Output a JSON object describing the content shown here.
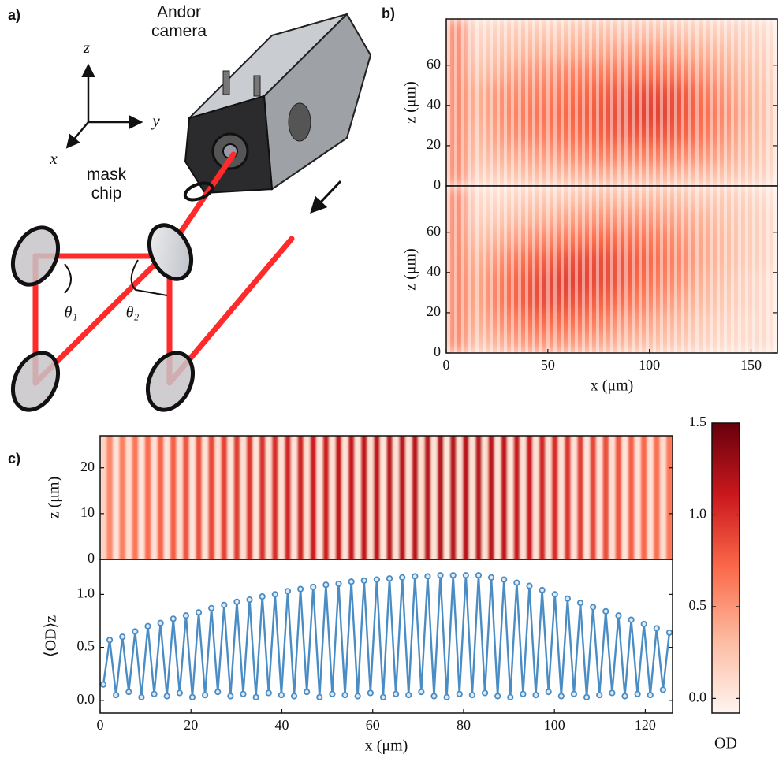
{
  "diagram": {
    "label": "a)",
    "camera": "Andor camera",
    "chip": "mask chip",
    "axes": [
      "z",
      "y",
      "x"
    ],
    "angles": [
      "θ₁",
      "θ₂"
    ]
  },
  "chart_data": [
    {
      "type": "heatmap",
      "label": "b)",
      "ylabel": "z (μm)",
      "xlim": [
        0,
        163
      ],
      "ylim": [
        0,
        83
      ],
      "yticks": [
        0,
        20,
        40,
        60
      ],
      "values": [
        [
          0.6,
          0.15,
          0.2,
          0.25,
          0.3,
          0.3,
          0.35,
          0.35,
          0.35,
          0.35,
          0.35,
          0.3,
          0.3,
          0.25,
          0.2,
          0.15
        ],
        [
          0.6,
          0.25,
          0.35,
          0.4,
          0.45,
          0.5,
          0.55,
          0.6,
          0.6,
          0.6,
          0.6,
          0.55,
          0.5,
          0.4,
          0.3,
          0.2
        ],
        [
          0.6,
          0.3,
          0.45,
          0.55,
          0.6,
          0.65,
          0.7,
          0.75,
          0.8,
          0.8,
          0.8,
          0.75,
          0.65,
          0.5,
          0.35,
          0.25
        ],
        [
          0.6,
          0.35,
          0.5,
          0.6,
          0.65,
          0.7,
          0.75,
          0.8,
          0.85,
          0.9,
          0.9,
          0.8,
          0.7,
          0.55,
          0.4,
          0.25
        ],
        [
          0.6,
          0.35,
          0.5,
          0.55,
          0.6,
          0.65,
          0.7,
          0.75,
          0.8,
          0.85,
          0.85,
          0.8,
          0.65,
          0.5,
          0.35,
          0.25
        ],
        [
          0.6,
          0.25,
          0.35,
          0.45,
          0.5,
          0.55,
          0.6,
          0.6,
          0.65,
          0.65,
          0.65,
          0.6,
          0.5,
          0.4,
          0.3,
          0.2
        ],
        [
          0.6,
          0.15,
          0.25,
          0.3,
          0.35,
          0.35,
          0.4,
          0.4,
          0.45,
          0.45,
          0.45,
          0.4,
          0.35,
          0.3,
          0.2,
          0.15
        ],
        [
          0.6,
          0.1,
          0.15,
          0.2,
          0.2,
          0.2,
          0.25,
          0.25,
          0.25,
          0.25,
          0.25,
          0.2,
          0.2,
          0.15,
          0.15,
          0.1
        ]
      ]
    },
    {
      "type": "heatmap",
      "ylabel": "z (μm)",
      "xlabel": "x (μm)",
      "xlim": [
        0,
        163
      ],
      "ylim": [
        0,
        83
      ],
      "xticks": [
        0,
        50,
        100,
        150
      ],
      "yticks": [
        0,
        20,
        40,
        60
      ],
      "values": [
        [
          0.6,
          0.25,
          0.35,
          0.45,
          0.5,
          0.5,
          0.45,
          0.4,
          0.35,
          0.3,
          0.25,
          0.2,
          0.15,
          0.1,
          0.1,
          0.1
        ],
        [
          0.6,
          0.35,
          0.5,
          0.6,
          0.7,
          0.7,
          0.65,
          0.6,
          0.5,
          0.45,
          0.35,
          0.3,
          0.2,
          0.15,
          0.1,
          0.1
        ],
        [
          0.6,
          0.4,
          0.6,
          0.75,
          0.85,
          0.85,
          0.8,
          0.75,
          0.7,
          0.6,
          0.5,
          0.4,
          0.3,
          0.2,
          0.15,
          0.1
        ],
        [
          0.6,
          0.4,
          0.6,
          0.75,
          0.85,
          0.9,
          0.9,
          0.85,
          0.8,
          0.7,
          0.6,
          0.5,
          0.35,
          0.25,
          0.15,
          0.1
        ],
        [
          0.6,
          0.35,
          0.5,
          0.65,
          0.75,
          0.8,
          0.85,
          0.85,
          0.8,
          0.75,
          0.65,
          0.55,
          0.4,
          0.3,
          0.2,
          0.15
        ],
        [
          0.6,
          0.25,
          0.35,
          0.45,
          0.55,
          0.6,
          0.65,
          0.7,
          0.7,
          0.65,
          0.6,
          0.5,
          0.4,
          0.3,
          0.2,
          0.15
        ],
        [
          0.6,
          0.15,
          0.2,
          0.3,
          0.35,
          0.4,
          0.45,
          0.5,
          0.5,
          0.5,
          0.45,
          0.4,
          0.35,
          0.25,
          0.2,
          0.15
        ],
        [
          0.6,
          0.1,
          0.1,
          0.15,
          0.2,
          0.2,
          0.25,
          0.3,
          0.3,
          0.3,
          0.3,
          0.25,
          0.2,
          0.2,
          0.15,
          0.1
        ]
      ]
    },
    {
      "type": "heatmap",
      "label": "c)",
      "ylabel": "z (μm)",
      "xlim": [
        0,
        126
      ],
      "ylim": [
        0,
        27
      ],
      "yticks": [
        0,
        10,
        20
      ]
    },
    {
      "type": "line",
      "ylabel": "⟨OD⟩z",
      "xlabel": "x (μm)",
      "xlim": [
        0,
        126
      ],
      "ylim": [
        -0.12,
        1.33
      ],
      "xticks": [
        0,
        20,
        40,
        60,
        80,
        100,
        120
      ],
      "yticks": [
        {
          "value": 0,
          "label": "0.0"
        },
        0.5,
        {
          "value": 1,
          "label": "1.0"
        }
      ],
      "color": "#4a8cc4",
      "x": [
        0.7,
        2.1,
        3.5,
        4.9,
        6.3,
        7.7,
        9.1,
        10.5,
        11.9,
        13.3,
        14.7,
        16.1,
        17.5,
        18.9,
        20.3,
        21.7,
        23.1,
        24.5,
        25.9,
        27.3,
        28.7,
        30.1,
        31.5,
        32.9,
        34.3,
        35.7,
        37.1,
        38.5,
        39.9,
        41.3,
        42.7,
        44.1,
        45.5,
        46.9,
        48.3,
        49.7,
        51.1,
        52.5,
        53.9,
        55.3,
        56.7,
        58.1,
        59.5,
        60.9,
        62.3,
        63.7,
        65.1,
        66.5,
        67.9,
        69.3,
        70.7,
        72.1,
        73.5,
        74.9,
        76.3,
        77.7,
        79.1,
        80.5,
        81.9,
        83.3,
        84.7,
        86.1,
        87.5,
        88.9,
        90.3,
        91.7,
        93.1,
        94.5,
        95.9,
        97.3,
        98.7,
        100.1,
        101.5,
        102.9,
        104.3,
        105.7,
        107.1,
        108.5,
        109.9,
        111.3,
        112.7,
        114.1,
        115.5,
        116.9,
        118.3,
        119.7,
        121.1,
        122.5,
        123.9,
        125.3
      ],
      "values": [
        0.15,
        0.57,
        0.05,
        0.6,
        0.08,
        0.65,
        0.03,
        0.7,
        0.06,
        0.73,
        0.04,
        0.77,
        0.07,
        0.8,
        0.03,
        0.83,
        0.05,
        0.87,
        0.08,
        0.9,
        0.04,
        0.93,
        0.06,
        0.95,
        0.03,
        0.98,
        0.07,
        1.0,
        0.05,
        1.03,
        0.04,
        1.05,
        0.08,
        1.07,
        0.03,
        1.09,
        0.06,
        1.1,
        0.05,
        1.12,
        0.04,
        1.13,
        0.07,
        1.14,
        0.03,
        1.15,
        0.06,
        1.16,
        0.05,
        1.17,
        0.08,
        1.17,
        0.04,
        1.18,
        0.03,
        1.18,
        0.06,
        1.18,
        0.05,
        1.18,
        0.07,
        1.16,
        0.04,
        1.14,
        0.03,
        1.11,
        0.06,
        1.08,
        0.05,
        1.04,
        0.08,
        1.0,
        0.04,
        0.96,
        0.06,
        0.92,
        0.03,
        0.88,
        0.05,
        0.84,
        0.07,
        0.8,
        0.04,
        0.76,
        0.06,
        0.72,
        0.05,
        0.68,
        0.1,
        0.64
      ]
    },
    {
      "type": "colorbar",
      "label": "OD",
      "ylim": [
        -0.08,
        1.5
      ],
      "yticks": [
        {
          "value": 0,
          "label": "0.0"
        },
        0.5,
        {
          "value": 1,
          "label": "1.0"
        },
        1.5
      ],
      "colors": [
        "#fff5f0",
        "#fcbba1",
        "#fb6a4a",
        "#cb181d",
        "#67000d"
      ]
    }
  ]
}
